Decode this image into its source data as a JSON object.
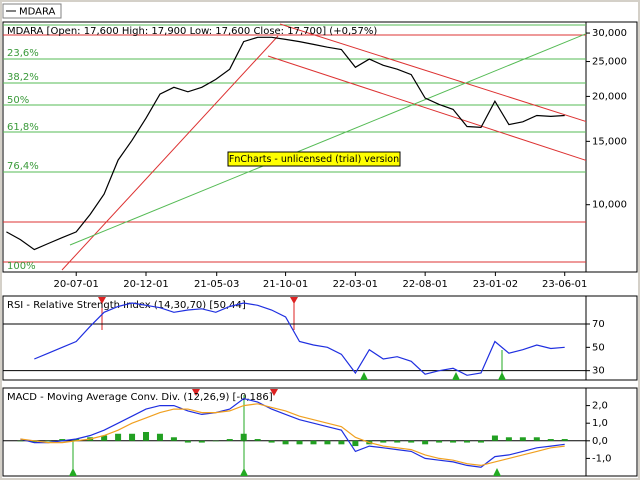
{
  "chart_data": [
    {
      "type": "line",
      "title": "MDARA [Open: 17,600  High: 17,900  Low: 17,600  Close: 17,700] (+0,57%)",
      "log": true,
      "x": [
        "20-02-01",
        "20-03-01",
        "20-04-01",
        "20-05-01",
        "20-06-01",
        "20-07-01",
        "20-08-01",
        "20-09-01",
        "20-10-01",
        "20-11-01",
        "20-12-01",
        "21-01-01",
        "21-02-01",
        "21-03-01",
        "21-04-01",
        "21-05-01",
        "21-06-01",
        "21-07-01",
        "21-08-01",
        "21-09-01",
        "21-10-01",
        "21-11-01",
        "21-12-01",
        "22-01-01",
        "22-02-01",
        "22-03-01",
        "22-04-01",
        "22-05-01",
        "22-06-01",
        "22-07-01",
        "22-08-01",
        "22-09-01",
        "22-10-01",
        "22-11-01",
        "22-12-01",
        "23-01-01",
        "23-02-01",
        "23-03-01",
        "23-04-01",
        "23-05-01",
        "23-06-01"
      ],
      "series": [
        {
          "name": "MDARA",
          "color": "#000000",
          "values": [
            8400,
            8000,
            7500,
            7800,
            8100,
            8400,
            9400,
            10700,
            13300,
            15100,
            17400,
            20300,
            21200,
            20600,
            21200,
            22300,
            23800,
            28400,
            29200,
            29200,
            28800,
            28400,
            27900,
            27400,
            27000,
            24100,
            25400,
            24400,
            23800,
            23000,
            19800,
            19000,
            18400,
            16500,
            16400,
            19400,
            16700,
            17000,
            17700,
            17600,
            17700
          ]
        }
      ],
      "xlim": [
        "20-01-24",
        "23-07-17"
      ],
      "xticks": [
        "20-07-01",
        "20-12-01",
        "21-05-03",
        "21-10-01",
        "22-03-01",
        "22-08-01",
        "23-01-02",
        "23-06-01"
      ],
      "ylim": [
        6500,
        32200
      ],
      "yticks": [
        {
          "value": 30000,
          "label": "30,000"
        },
        {
          "value": 25000,
          "label": "25,000"
        },
        {
          "value": 20000,
          "label": "20,000"
        },
        {
          "value": 15000,
          "label": "15,000"
        },
        {
          "value": 10000,
          "label": "10,000"
        }
      ],
      "fib_labels": [
        "23,6%",
        "38,2%",
        "50%",
        "61,8%",
        "76,4%",
        "100%"
      ],
      "watermark": "FnCharts - unlicensed (trial) version"
    },
    {
      "type": "line",
      "title": "RSI - Relative Strength Index (14,30,70) [50,44]",
      "x": [
        "20-02-01",
        "20-03-01",
        "20-04-01",
        "20-05-01",
        "20-06-01",
        "20-07-01",
        "20-08-01",
        "20-09-01",
        "20-10-01",
        "20-11-01",
        "20-12-01",
        "21-01-01",
        "21-02-01",
        "21-03-01",
        "21-04-01",
        "21-05-01",
        "21-06-01",
        "21-07-01",
        "21-08-01",
        "21-09-01",
        "21-10-01",
        "21-11-01",
        "21-12-01",
        "22-01-01",
        "22-02-01",
        "22-03-01",
        "22-04-01",
        "22-05-01",
        "22-06-01",
        "22-07-01",
        "22-08-01",
        "22-09-01",
        "22-10-01",
        "22-11-01",
        "22-12-01",
        "23-01-01",
        "23-02-01",
        "23-03-01",
        "23-04-01",
        "23-05-01",
        "23-06-01"
      ],
      "series": [
        {
          "name": "RSI",
          "color": "#1f2fe0",
          "values": [
            null,
            null,
            40,
            45,
            50,
            55,
            68,
            80,
            85,
            88,
            86,
            84,
            80,
            82,
            83,
            80,
            85,
            88,
            86,
            82,
            76,
            55,
            52,
            50,
            44,
            28,
            48,
            40,
            42,
            38,
            27,
            30,
            32,
            26,
            28,
            55,
            45,
            48,
            52,
            49,
            50
          ]
        }
      ],
      "xlim": [
        "20-01-24",
        "23-07-17"
      ],
      "ylim": [
        22,
        94
      ],
      "yticks": [
        70,
        50,
        30
      ]
    },
    {
      "type": "line",
      "title": "MACD - Moving Average Conv. Div. (12,26,9) [-0,186]",
      "x": [
        "20-02-01",
        "20-03-01",
        "20-04-01",
        "20-05-01",
        "20-06-01",
        "20-07-01",
        "20-08-01",
        "20-09-01",
        "20-10-01",
        "20-11-01",
        "20-12-01",
        "21-01-01",
        "21-02-01",
        "21-03-01",
        "21-04-01",
        "21-05-01",
        "21-06-01",
        "21-07-01",
        "21-08-01",
        "21-09-01",
        "21-10-01",
        "21-11-01",
        "21-12-01",
        "22-01-01",
        "22-02-01",
        "22-03-01",
        "22-04-01",
        "22-05-01",
        "22-06-01",
        "22-07-01",
        "22-08-01",
        "22-09-01",
        "22-10-01",
        "22-11-01",
        "22-12-01",
        "23-01-01",
        "23-02-01",
        "23-03-01",
        "23-04-01",
        "23-05-01",
        "23-06-01"
      ],
      "series": [
        {
          "name": "Histogram",
          "type": "bar",
          "color": "#22a022",
          "values": [
            null,
            0,
            -0.1,
            0,
            0.1,
            0.1,
            0.2,
            0.3,
            0.4,
            0.4,
            0.5,
            0.4,
            0.2,
            -0.1,
            -0.1,
            0,
            0.1,
            0.4,
            0.1,
            -0.1,
            -0.2,
            -0.2,
            -0.2,
            -0.2,
            -0.2,
            -0.3,
            -0.2,
            -0.1,
            -0.1,
            -0.1,
            -0.2,
            -0.1,
            -0.1,
            -0.1,
            -0.1,
            0.3,
            0.2,
            0.2,
            0.2,
            0.1,
            0.1
          ]
        },
        {
          "name": "MACD",
          "color": "#1f2fe0",
          "values": [
            null,
            0.1,
            -0.1,
            -0.1,
            0,
            0.1,
            0.3,
            0.6,
            1.0,
            1.4,
            1.8,
            2.0,
            2.0,
            1.7,
            1.5,
            1.6,
            1.8,
            2.4,
            2.2,
            1.8,
            1.5,
            1.2,
            1.0,
            0.8,
            0.6,
            -0.6,
            -0.3,
            -0.4,
            -0.5,
            -0.6,
            -1.0,
            -1.1,
            -1.2,
            -1.4,
            -1.5,
            -0.9,
            -0.8,
            -0.6,
            -0.4,
            -0.3,
            -0.2
          ]
        },
        {
          "name": "Signal",
          "color": "#f0a020",
          "values": [
            null,
            0.1,
            0,
            -0.1,
            -0.1,
            0,
            0.1,
            0.3,
            0.6,
            1.0,
            1.3,
            1.6,
            1.8,
            1.8,
            1.6,
            1.6,
            1.7,
            2.0,
            2.1,
            1.9,
            1.7,
            1.4,
            1.2,
            1.0,
            0.8,
            0.2,
            -0.1,
            -0.3,
            -0.4,
            -0.5,
            -0.8,
            -1.0,
            -1.1,
            -1.3,
            -1.4,
            -1.2,
            -1.0,
            -0.8,
            -0.6,
            -0.4,
            -0.3
          ]
        }
      ],
      "xlim": [
        "20-01-24",
        "23-07-17"
      ],
      "ylim": [
        -2,
        3
      ],
      "yticks": [
        {
          "value": 2,
          "label": "2,0"
        },
        {
          "value": 1,
          "label": "1,0"
        },
        {
          "value": 0,
          "label": "0,0"
        },
        {
          "value": -1,
          "label": "-1,0"
        }
      ]
    }
  ]
}
